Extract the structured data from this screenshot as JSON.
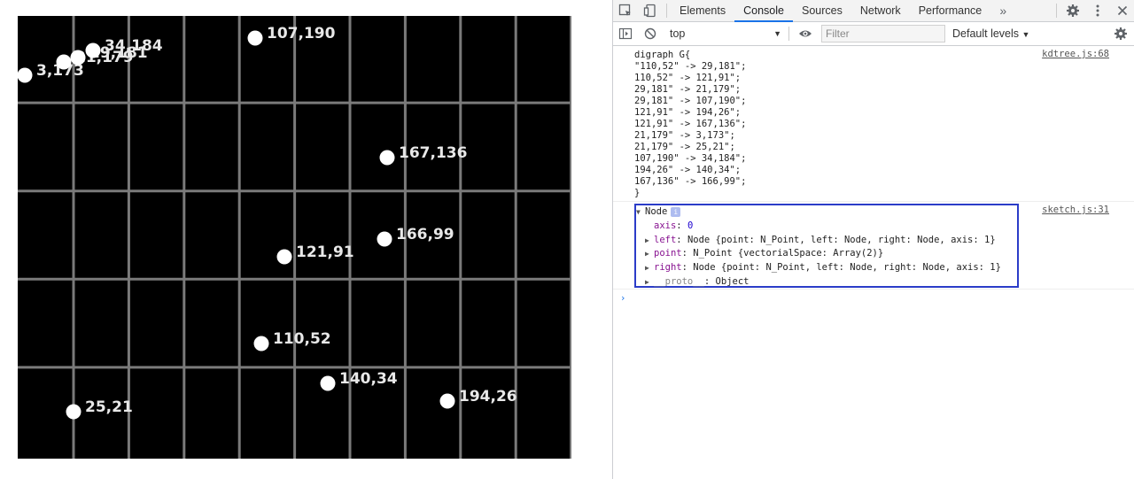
{
  "canvas": {
    "background": "#000000",
    "grid_color": "#7a7a7a",
    "point_color": "#ffffff",
    "label_color": "#e8e8e8",
    "points": [
      {
        "label": "3,173"
      },
      {
        "label": "21,179"
      },
      {
        "label": "29,181"
      },
      {
        "label": "34,184"
      },
      {
        "label": "107,190"
      },
      {
        "label": "167,136"
      },
      {
        "label": "166,99"
      },
      {
        "label": "121,91"
      },
      {
        "label": "110,52"
      },
      {
        "label": "140,34"
      },
      {
        "label": "194,26"
      },
      {
        "label": "25,21"
      }
    ]
  },
  "devtools": {
    "tabs": [
      "Elements",
      "Console",
      "Sources",
      "Network",
      "Performance"
    ],
    "active_tab": "Console",
    "more_tabs_icon": "double-chevron-icon",
    "toolbar": {
      "context": "top",
      "filter_placeholder": "Filter",
      "levels": "Default levels"
    },
    "messages": [
      {
        "source": "kdtree.js:68",
        "lines": [
          "digraph G{",
          "\"110,52\" -> 29,181\";",
          "110,52\" -> 121,91\";",
          "29,181\" -> 21,179\";",
          "29,181\" -> 107,190\";",
          "121,91\" -> 194,26\";",
          "121,91\" -> 167,136\";",
          "21,179\" -> 3,173\";",
          "21,179\" -> 25,21\";",
          "107,190\" -> 34,184\";",
          "194,26\" -> 140,34\";",
          "167,136\" -> 166,99\";",
          "}"
        ]
      },
      {
        "source": "sketch.js:31",
        "object": {
          "title": "Node",
          "axis_key": "axis",
          "axis_value": "0",
          "left_key": "left",
          "left_value": "Node {point: N_Point, left: Node, right: Node, axis: 1}",
          "point_key": "point",
          "point_value": "N_Point {vectorialSpace: Array(2)}",
          "right_key": "right",
          "right_value": "Node {point: N_Point, left: Node, right: Node, axis: 1}",
          "proto_key": "__proto__",
          "proto_value": ": Object"
        }
      }
    ]
  }
}
